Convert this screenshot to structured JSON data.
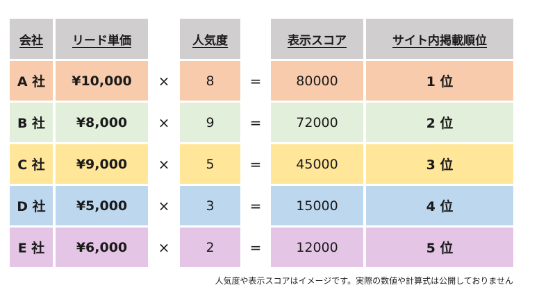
{
  "headers": {
    "company": "会社",
    "lead_price": "リード単価",
    "popularity": "人気度",
    "display_score": "表示スコア",
    "rank": "サイト内掲載順位"
  },
  "rows": [
    {
      "company": "A 社",
      "price": "¥10,000",
      "times": "×",
      "popularity": "8",
      "equals": "=",
      "score": "80000",
      "rank": "1 位",
      "color": "#f8cbad"
    },
    {
      "company": "B 社",
      "price": "¥8,000",
      "times": "×",
      "popularity": "9",
      "equals": "=",
      "score": "72000",
      "rank": "2 位",
      "color": "#e2efda"
    },
    {
      "company": "C 社",
      "price": "¥9,000",
      "times": "×",
      "popularity": "5",
      "equals": "=",
      "score": "45000",
      "rank": "3 位",
      "color": "#ffe699"
    },
    {
      "company": "D 社",
      "price": "¥5,000",
      "times": "×",
      "popularity": "3",
      "equals": "=",
      "score": "15000",
      "rank": "4 位",
      "color": "#bdd7ee"
    },
    {
      "company": "E 社",
      "price": "¥6,000",
      "times": "×",
      "popularity": "2",
      "equals": "=",
      "score": "12000",
      "rank": "5 位",
      "color": "#e4c5e6"
    }
  ],
  "note": "人気度や表示スコアはイメージです。実際の数値や計算式は公開しておりません",
  "header_color": "#d0cece"
}
